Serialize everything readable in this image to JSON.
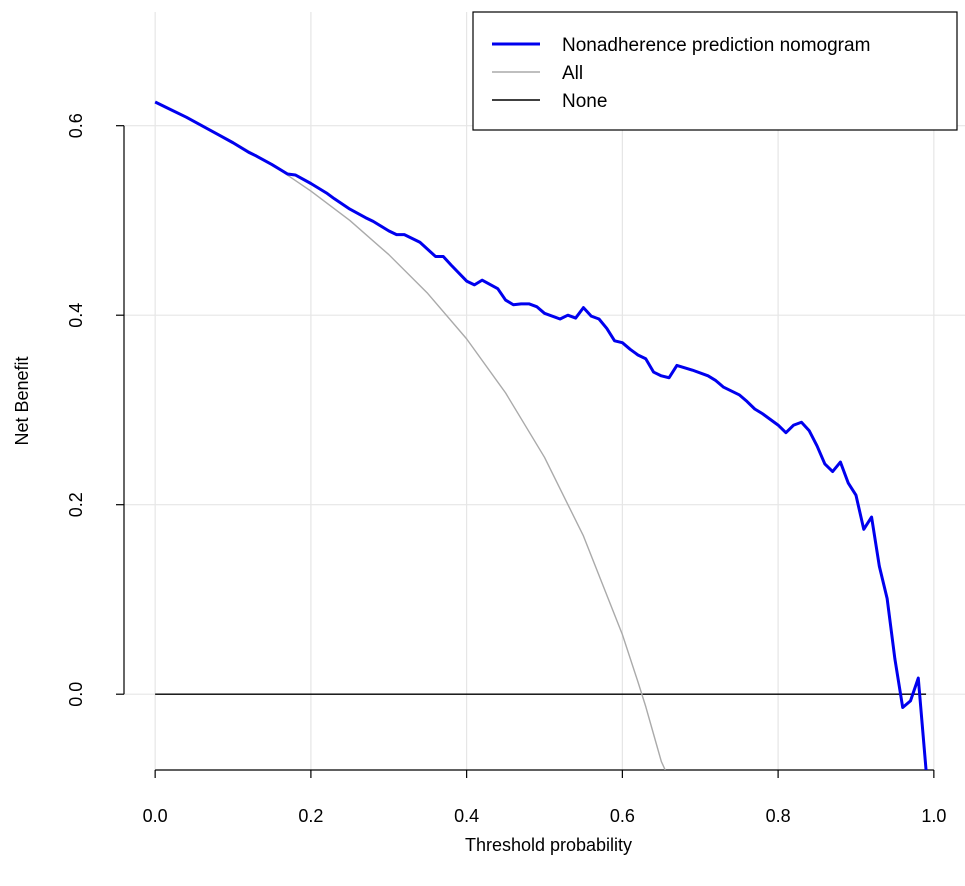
{
  "chart_data": {
    "type": "line",
    "title": "",
    "xlabel": "Threshold probability",
    "ylabel": "Net Benefit",
    "xlim": [
      -0.04,
      1.04
    ],
    "ylim": [
      -0.08,
      0.72
    ],
    "x_ticks": [
      0.0,
      0.2,
      0.4,
      0.6,
      0.8,
      1.0
    ],
    "x_tick_labels": [
      "0.0",
      "0.2",
      "0.4",
      "0.6",
      "0.8",
      "1.0"
    ],
    "y_ticks": [
      0.0,
      0.2,
      0.4,
      0.6
    ],
    "y_tick_labels": [
      "0.0",
      "0.2",
      "0.4",
      "0.6"
    ],
    "grid": true,
    "legend_position": "top-right",
    "legend": [
      {
        "label": "Nonadherence prediction nomogram",
        "color": "#0000ee",
        "width": "thick"
      },
      {
        "label": "All",
        "color": "#aaaaaa",
        "width": "thin"
      },
      {
        "label": "None",
        "color": "#000000",
        "width": "thin"
      }
    ],
    "series": [
      {
        "name": "Nonadherence prediction nomogram",
        "color": "#0000ee",
        "points": [
          [
            0.0,
            0.625
          ],
          [
            0.02,
            0.617
          ],
          [
            0.04,
            0.609
          ],
          [
            0.06,
            0.6
          ],
          [
            0.08,
            0.591
          ],
          [
            0.1,
            0.582
          ],
          [
            0.12,
            0.572
          ],
          [
            0.13,
            0.568
          ],
          [
            0.15,
            0.559
          ],
          [
            0.17,
            0.549
          ],
          [
            0.18,
            0.548
          ],
          [
            0.2,
            0.539
          ],
          [
            0.22,
            0.529
          ],
          [
            0.23,
            0.523
          ],
          [
            0.25,
            0.512
          ],
          [
            0.27,
            0.503
          ],
          [
            0.28,
            0.499
          ],
          [
            0.3,
            0.489
          ],
          [
            0.31,
            0.485
          ],
          [
            0.32,
            0.485
          ],
          [
            0.34,
            0.477
          ],
          [
            0.36,
            0.462
          ],
          [
            0.37,
            0.462
          ],
          [
            0.38,
            0.453
          ],
          [
            0.4,
            0.436
          ],
          [
            0.41,
            0.432
          ],
          [
            0.42,
            0.437
          ],
          [
            0.44,
            0.428
          ],
          [
            0.45,
            0.416
          ],
          [
            0.46,
            0.411
          ],
          [
            0.47,
            0.412
          ],
          [
            0.48,
            0.412
          ],
          [
            0.49,
            0.409
          ],
          [
            0.5,
            0.402
          ],
          [
            0.52,
            0.396
          ],
          [
            0.53,
            0.4
          ],
          [
            0.54,
            0.397
          ],
          [
            0.55,
            0.408
          ],
          [
            0.56,
            0.399
          ],
          [
            0.57,
            0.396
          ],
          [
            0.58,
            0.386
          ],
          [
            0.59,
            0.373
          ],
          [
            0.6,
            0.371
          ],
          [
            0.61,
            0.364
          ],
          [
            0.62,
            0.358
          ],
          [
            0.63,
            0.354
          ],
          [
            0.64,
            0.34
          ],
          [
            0.65,
            0.336
          ],
          [
            0.66,
            0.334
          ],
          [
            0.67,
            0.347
          ],
          [
            0.69,
            0.342
          ],
          [
            0.71,
            0.336
          ],
          [
            0.72,
            0.331
          ],
          [
            0.73,
            0.324
          ],
          [
            0.75,
            0.316
          ],
          [
            0.76,
            0.309
          ],
          [
            0.77,
            0.301
          ],
          [
            0.78,
            0.296
          ],
          [
            0.8,
            0.284
          ],
          [
            0.81,
            0.276
          ],
          [
            0.82,
            0.284
          ],
          [
            0.83,
            0.287
          ],
          [
            0.84,
            0.278
          ],
          [
            0.85,
            0.262
          ],
          [
            0.86,
            0.243
          ],
          [
            0.87,
            0.235
          ],
          [
            0.88,
            0.245
          ],
          [
            0.89,
            0.223
          ],
          [
            0.9,
            0.21
          ],
          [
            0.91,
            0.174
          ],
          [
            0.92,
            0.187
          ],
          [
            0.93,
            0.135
          ],
          [
            0.94,
            0.101
          ],
          [
            0.95,
            0.037
          ],
          [
            0.96,
            -0.014
          ],
          [
            0.97,
            -0.007
          ],
          [
            0.98,
            0.017
          ],
          [
            0.99,
            -0.08
          ]
        ]
      },
      {
        "name": "All",
        "color": "#aaaaaa",
        "points": [
          [
            0.0,
            0.625
          ],
          [
            0.05,
            0.605
          ],
          [
            0.1,
            0.583
          ],
          [
            0.15,
            0.559
          ],
          [
            0.2,
            0.531
          ],
          [
            0.25,
            0.5
          ],
          [
            0.3,
            0.464
          ],
          [
            0.35,
            0.423
          ],
          [
            0.4,
            0.375
          ],
          [
            0.45,
            0.318
          ],
          [
            0.5,
            0.25
          ],
          [
            0.55,
            0.167
          ],
          [
            0.6,
            0.063
          ],
          [
            0.62,
            0.013
          ],
          [
            0.63,
            -0.013
          ],
          [
            0.64,
            -0.042
          ],
          [
            0.65,
            -0.071
          ],
          [
            0.655,
            -0.08
          ]
        ]
      },
      {
        "name": "None",
        "color": "#000000",
        "points": [
          [
            0.0,
            0.0
          ],
          [
            0.99,
            0.0
          ]
        ]
      }
    ]
  }
}
